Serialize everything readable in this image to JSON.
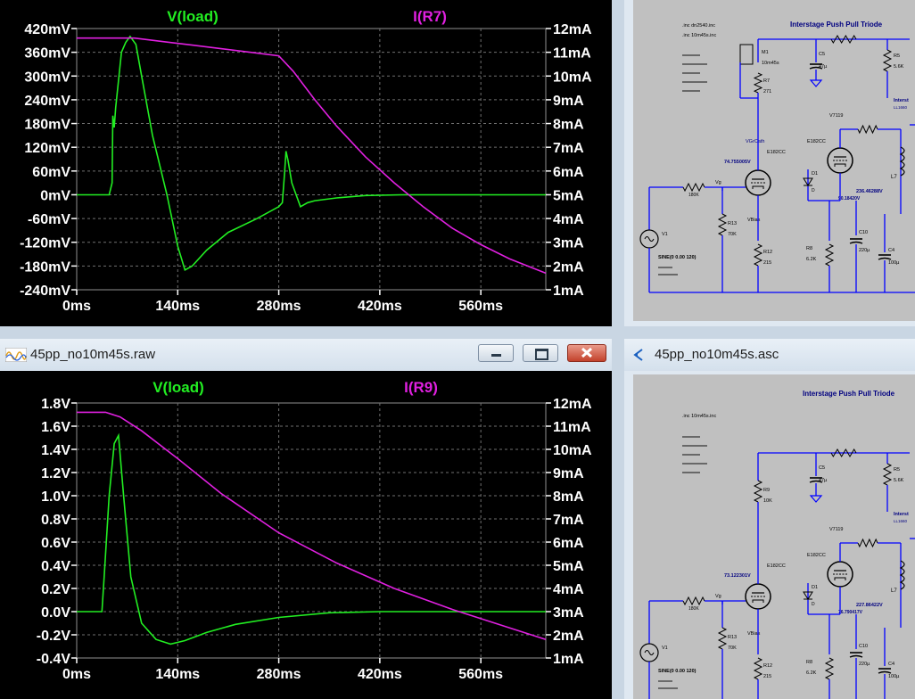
{
  "top_plot": {
    "trace_left": "V(load)",
    "trace_right": "I(R7)",
    "left_ticks": [
      "420mV",
      "360mV",
      "300mV",
      "240mV",
      "180mV",
      "120mV",
      "60mV",
      "0mV",
      "-60mV",
      "-120mV",
      "-180mV",
      "-240mV"
    ],
    "right_ticks": [
      "12mA",
      "11mA",
      "10mA",
      "9mA",
      "8mA",
      "7mA",
      "6mA",
      "5mA",
      "4mA",
      "3mA",
      "2mA",
      "1mA"
    ],
    "x_ticks": [
      "0ms",
      "140ms",
      "280ms",
      "420ms",
      "560ms"
    ]
  },
  "bottom_window": {
    "title": "45pp_no10m45s.raw",
    "trace_left": "V(load)",
    "trace_right": "I(R9)",
    "left_ticks": [
      "1.8V",
      "1.6V",
      "1.4V",
      "1.2V",
      "1.0V",
      "0.8V",
      "0.6V",
      "0.4V",
      "0.2V",
      "0.0V",
      "-0.2V",
      "-0.4V"
    ],
    "right_ticks": [
      "12mA",
      "11mA",
      "10mA",
      "9mA",
      "8mA",
      "7mA",
      "6mA",
      "5mA",
      "4mA",
      "3mA",
      "2mA",
      "1mA"
    ],
    "x_ticks": [
      "0ms",
      "140ms",
      "280ms",
      "420ms",
      "560ms"
    ]
  },
  "schematic_top": {
    "title": "Interstage Push Pull Triode",
    "directives": [
      ".inc dn2540.inc",
      ".inc 10m45s.inc"
    ],
    "labels": {
      "m1": "M1",
      "m1_model": "10m45s",
      "r7": "R7",
      "r7_val": "271",
      "c5": "C5",
      "c5_val": "47µ",
      "r5": "R5",
      "r5_val": "5.6K",
      "v7119": "V7119",
      "vbias": "VGrCath",
      "e182a": "E182CC",
      "e182b": "E182CC",
      "node_a": "74.755005V",
      "node_b": "236.46288V",
      "node_c": "90.18420V",
      "d1": "D1",
      "l7": "L7",
      "r11": "180K",
      "r13": "R13",
      "r13_val": "70K",
      "r12": "R12",
      "r12_val": "215",
      "r8": "R8",
      "r8_val": "6.2K",
      "c10": "C10",
      "c10_val": "220µ",
      "c4": "C4",
      "c4_val": "100µ",
      "v1": "V1",
      "sine": "SINE(0 0.00 120)",
      "vbias_side": "VBias",
      "vg": "Vg",
      "inter": "Interst",
      "inter_sub": "LL1660"
    }
  },
  "schematic_bottom": {
    "title": "45pp_no10m45s.asc",
    "heading": "Interstage Push Pull Triode",
    "directives": [
      ".inc 10m45s.inc"
    ],
    "labels": {
      "c5": "C5",
      "c5_val": "47µ",
      "r5": "R5",
      "r5_val": "5.6K",
      "r9": "R9",
      "r9_val": "10K",
      "v7119": "V7119",
      "e182a": "E182CC",
      "e182b": "E182CC",
      "node_a": "73.122301V",
      "node_b": "227.86422V",
      "node_c": "76.790417V",
      "d1": "D1",
      "l7": "L7",
      "r11": "180K",
      "r13": "R13",
      "r13_val": "70K",
      "r12": "R12",
      "r12_val": "215",
      "r8": "R8",
      "r8_val": "6.2K",
      "c10": "C10",
      "c10_val": "220µ",
      "c4": "C4",
      "c4_val": "100µ",
      "v1": "V1",
      "sine": "SINE(0 0.00 120)",
      "vbias_side": "VBias",
      "vg": "Vg",
      "inter": "Interst",
      "inter_sub": "LL1660"
    }
  },
  "colors": {
    "plot_bg": "#000000",
    "trace_voltage": "#22ee22",
    "trace_current": "#e020e0",
    "grid": "#707070",
    "tick_label": "#ffffff",
    "schematic_bg": "#c0c0c0",
    "wire": "#0000ff",
    "label_dark": "#000080"
  },
  "chart_data": [
    {
      "type": "line",
      "title": "",
      "x_ticks": [
        "0ms",
        "140ms",
        "280ms",
        "420ms",
        "560ms"
      ],
      "xlim": [
        0,
        650
      ],
      "ylim": [
        -240,
        420
      ],
      "y2lim": [
        1,
        12
      ],
      "series": [
        {
          "name": "V(load)",
          "axis": "left",
          "unit": "mV",
          "x": [
            0,
            45,
            49,
            50,
            52,
            54,
            62,
            68,
            74,
            82,
            90,
            105,
            125,
            140,
            150,
            160,
            180,
            210,
            250,
            280,
            285,
            288,
            290,
            293,
            298,
            310,
            320,
            330,
            360,
            400,
            450,
            500,
            560,
            650
          ],
          "y": [
            0,
            0,
            30,
            200,
            170,
            220,
            360,
            385,
            400,
            380,
            300,
            150,
            0,
            -130,
            -190,
            -180,
            -140,
            -95,
            -60,
            -30,
            -20,
            55,
            110,
            85,
            30,
            -30,
            -20,
            -15,
            -8,
            -2,
            0,
            0,
            0,
            0
          ]
        },
        {
          "name": "I(R7)",
          "axis": "right",
          "unit": "mA",
          "x": [
            0,
            40,
            80,
            120,
            160,
            200,
            240,
            280,
            300,
            330,
            360,
            400,
            440,
            480,
            520,
            560,
            600,
            650
          ],
          "y": [
            11.6,
            11.6,
            11.6,
            11.45,
            11.3,
            11.15,
            11.0,
            10.85,
            10.2,
            9.0,
            7.9,
            6.6,
            5.5,
            4.5,
            3.6,
            2.9,
            2.3,
            1.7
          ]
        }
      ]
    },
    {
      "type": "line",
      "title": "",
      "x_ticks": [
        "0ms",
        "140ms",
        "280ms",
        "420ms",
        "560ms"
      ],
      "xlim": [
        0,
        650
      ],
      "ylim": [
        -0.4,
        1.8
      ],
      "y2lim": [
        1,
        12
      ],
      "series": [
        {
          "name": "V(load)",
          "axis": "left",
          "unit": "V",
          "x": [
            0,
            35,
            38,
            45,
            52,
            58,
            65,
            75,
            90,
            110,
            130,
            150,
            180,
            220,
            280,
            350,
            420,
            500,
            560,
            650
          ],
          "y": [
            0,
            0,
            0.3,
            1.0,
            1.45,
            1.52,
            1.0,
            0.3,
            -0.1,
            -0.24,
            -0.28,
            -0.25,
            -0.18,
            -0.11,
            -0.05,
            -0.01,
            0,
            0,
            0,
            0
          ]
        },
        {
          "name": "I(R9)",
          "axis": "right",
          "unit": "mA",
          "x": [
            0,
            40,
            60,
            90,
            140,
            200,
            280,
            360,
            440,
            520,
            600,
            650
          ],
          "y": [
            11.6,
            11.6,
            11.4,
            10.8,
            9.6,
            8.1,
            6.4,
            5.1,
            4.0,
            3.1,
            2.3,
            1.8
          ]
        }
      ]
    }
  ]
}
